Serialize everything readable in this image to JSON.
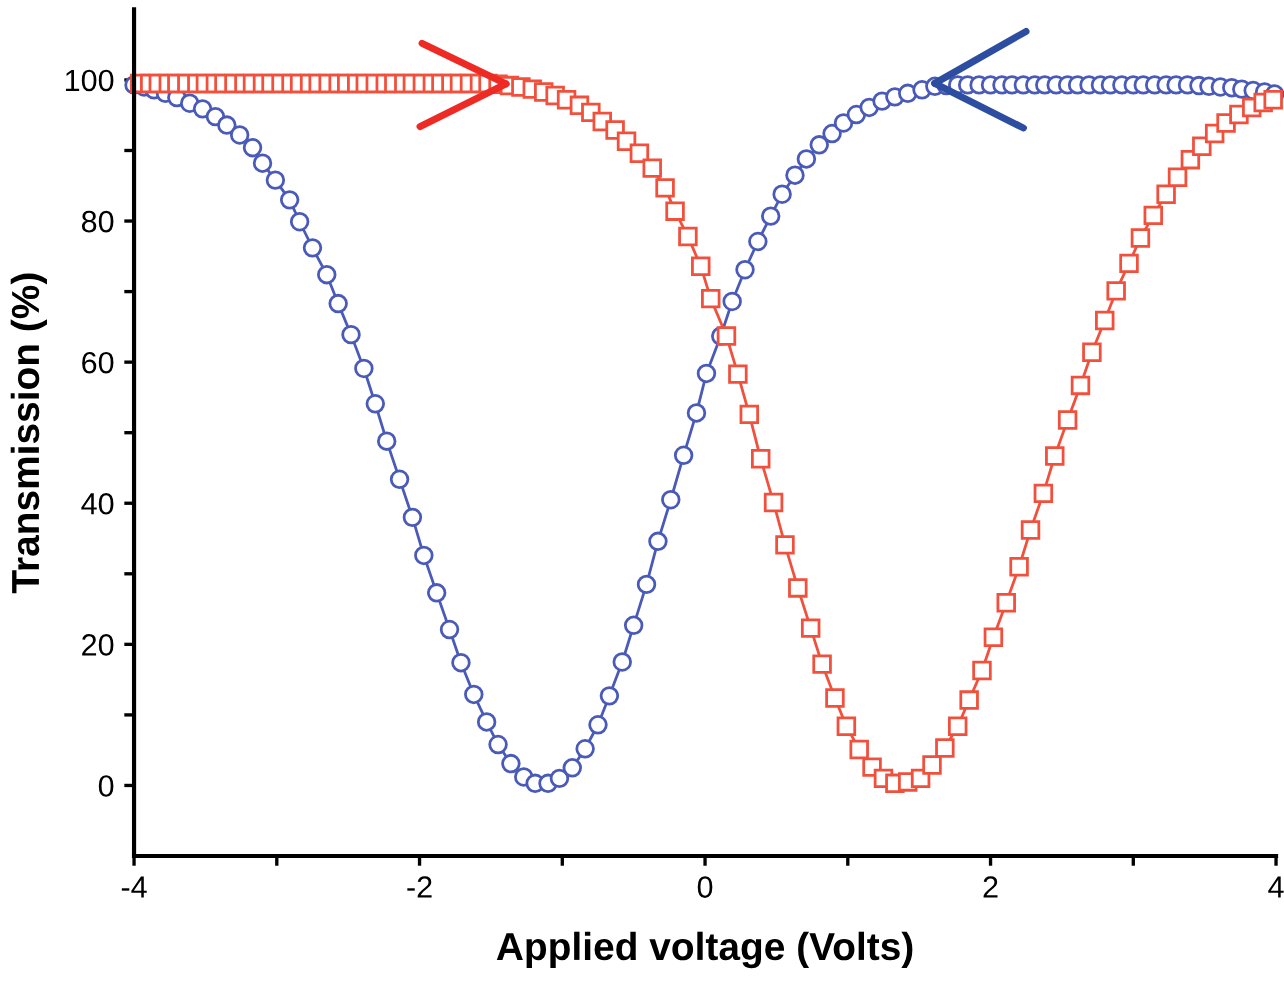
{
  "chart_data": {
    "type": "line",
    "xlabel": "Applied voltage (Volts)",
    "ylabel": "Transmission (%)",
    "xlim": [
      -4,
      4
    ],
    "ylim": [
      -10,
      110
    ],
    "xticks": [
      -4,
      {
        "value": -3,
        "label": null
      },
      -2,
      {
        "value": -1,
        "label": null
      },
      0,
      {
        "value": 1,
        "label": null
      },
      2,
      {
        "value": 3,
        "label": null
      },
      4
    ],
    "yticks": [
      0,
      {
        "value": 10,
        "label": null
      },
      20,
      {
        "value": 30,
        "label": null
      },
      40,
      {
        "value": 50,
        "label": null
      },
      60,
      {
        "value": 70,
        "label": null
      },
      80,
      {
        "value": 90,
        "label": null
      },
      100
    ],
    "series": [
      {
        "color": "#4a5ab8",
        "marker": "circle",
        "x": [
          -4.0,
          -3.93,
          -3.86,
          -3.78,
          -3.7,
          -3.61,
          -3.52,
          -3.43,
          -3.35,
          -3.26,
          -3.17,
          -3.1,
          -3.01,
          -2.91,
          -2.84,
          -2.75,
          -2.65,
          -2.57,
          -2.48,
          -2.39,
          -2.31,
          -2.23,
          -2.14,
          -2.05,
          -1.97,
          -1.88,
          -1.79,
          -1.71,
          -1.62,
          -1.53,
          -1.45,
          -1.36,
          -1.27,
          -1.19,
          -1.1,
          -1.02,
          -0.93,
          -0.84,
          -0.75,
          -0.67,
          -0.58,
          -0.5,
          -0.41,
          -0.33,
          -0.24,
          -0.15,
          -0.06,
          0.01,
          0.11,
          0.19,
          0.28,
          0.37,
          0.46,
          0.54,
          0.63,
          0.71,
          0.8,
          0.89,
          0.97,
          1.06,
          1.15,
          1.24,
          1.33,
          1.42,
          1.52,
          1.61,
          1.69,
          1.77,
          1.84,
          1.92,
          2.0,
          2.08,
          2.15,
          2.23,
          2.31,
          2.38,
          2.46,
          2.54,
          2.61,
          2.69,
          2.77,
          2.84,
          2.92,
          3.0,
          3.07,
          3.15,
          3.23,
          3.3,
          3.38,
          3.46,
          3.53,
          3.61,
          3.69,
          3.76,
          3.84,
          3.92,
          3.99
        ],
        "values": [
          99.3,
          99.0,
          98.6,
          98.1,
          97.5,
          96.7,
          95.9,
          94.8,
          93.6,
          92.2,
          90.4,
          88.2,
          85.8,
          83.0,
          79.9,
          76.2,
          72.4,
          68.3,
          63.9,
          59.1,
          54.1,
          48.8,
          43.4,
          38.0,
          32.6,
          27.3,
          22.1,
          17.4,
          12.9,
          9.0,
          5.8,
          3.1,
          1.2,
          0.3,
          0.3,
          1.0,
          2.5,
          5.2,
          8.6,
          12.7,
          17.5,
          22.7,
          28.5,
          34.6,
          40.5,
          46.8,
          52.8,
          58.4,
          63.7,
          68.6,
          73.1,
          77.1,
          80.7,
          83.8,
          86.5,
          88.8,
          90.8,
          92.4,
          93.9,
          95.1,
          96.1,
          97.0,
          97.6,
          98.1,
          98.6,
          99.1,
          99.2,
          99.3,
          99.3,
          99.3,
          99.3,
          99.3,
          99.3,
          99.3,
          99.3,
          99.3,
          99.3,
          99.3,
          99.3,
          99.3,
          99.3,
          99.3,
          99.3,
          99.3,
          99.3,
          99.3,
          99.3,
          99.3,
          99.3,
          99.2,
          99.1,
          99.0,
          98.9,
          98.7,
          98.5,
          98.3,
          98.0
        ]
      },
      {
        "color": "#f0503c",
        "marker": "square",
        "x": [
          -3.96,
          -3.89,
          -3.83,
          -3.76,
          -3.7,
          -3.63,
          -3.56,
          -3.5,
          -3.43,
          -3.37,
          -3.3,
          -3.23,
          -3.17,
          -3.1,
          -3.04,
          -2.97,
          -2.9,
          -2.84,
          -2.77,
          -2.71,
          -2.64,
          -2.57,
          -2.51,
          -2.44,
          -2.38,
          -2.31,
          -2.24,
          -2.18,
          -2.11,
          -2.05,
          -1.98,
          -1.91,
          -1.85,
          -1.78,
          -1.72,
          -1.65,
          -1.58,
          -1.52,
          -1.45,
          -1.37,
          -1.29,
          -1.21,
          -1.13,
          -1.05,
          -0.97,
          -0.88,
          -0.8,
          -0.72,
          -0.63,
          -0.55,
          -0.46,
          -0.37,
          -0.28,
          -0.21,
          -0.12,
          -0.03,
          0.04,
          0.15,
          0.23,
          0.31,
          0.39,
          0.48,
          0.56,
          0.65,
          0.74,
          0.82,
          0.91,
          0.99,
          1.08,
          1.17,
          1.25,
          1.33,
          1.42,
          1.51,
          1.59,
          1.68,
          1.77,
          1.85,
          1.94,
          2.02,
          2.11,
          2.2,
          2.28,
          2.37,
          2.45,
          2.54,
          2.63,
          2.71,
          2.8,
          2.88,
          2.97,
          3.05,
          3.14,
          3.23,
          3.31,
          3.4,
          3.48,
          3.57,
          3.65,
          3.74,
          3.83,
          3.91,
          3.98
        ],
        "values": [
          99.5,
          99.5,
          99.5,
          99.5,
          99.5,
          99.5,
          99.5,
          99.5,
          99.5,
          99.5,
          99.5,
          99.5,
          99.5,
          99.5,
          99.5,
          99.5,
          99.5,
          99.5,
          99.5,
          99.5,
          99.5,
          99.5,
          99.5,
          99.5,
          99.5,
          99.5,
          99.5,
          99.5,
          99.5,
          99.5,
          99.5,
          99.5,
          99.5,
          99.5,
          99.5,
          99.5,
          99.5,
          99.5,
          99.4,
          99.2,
          99.0,
          98.7,
          98.3,
          97.8,
          97.2,
          96.4,
          95.4,
          94.1,
          92.9,
          91.3,
          89.6,
          87.5,
          84.7,
          81.4,
          77.8,
          73.6,
          69.0,
          63.7,
          58.3,
          52.6,
          46.3,
          40.1,
          34.1,
          28.0,
          22.3,
          17.2,
          12.4,
          8.4,
          5.1,
          2.6,
          1.0,
          0.3,
          0.5,
          1.0,
          2.9,
          5.3,
          8.4,
          12.1,
          16.3,
          21.0,
          25.9,
          31.0,
          36.2,
          41.4,
          46.7,
          51.8,
          56.7,
          61.4,
          65.9,
          70.1,
          74.0,
          77.6,
          80.8,
          83.8,
          86.2,
          88.7,
          90.6,
          92.4,
          93.9,
          95.1,
          96.1,
          96.8,
          97.2
        ]
      }
    ]
  }
}
